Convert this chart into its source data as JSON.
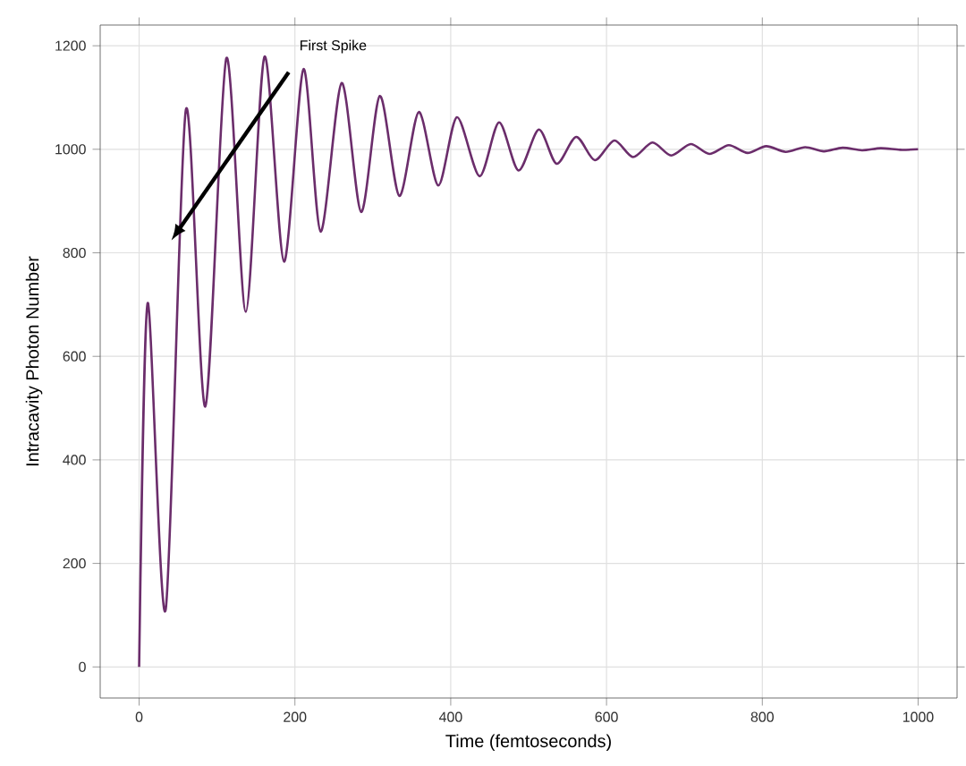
{
  "chart_data": {
    "type": "line",
    "xlabel": "Time (femtoseconds)",
    "ylabel": "Intracavity Photon Number",
    "xlim": [
      -50,
      1050
    ],
    "ylim": [
      -60,
      1240
    ],
    "xticks": [
      0,
      200,
      400,
      600,
      800,
      1000
    ],
    "yticks": [
      0,
      200,
      400,
      600,
      800,
      1000,
      1200
    ],
    "grid": true,
    "annotations": [
      "First Spike"
    ],
    "series": [
      {
        "color": "#6b2d6b",
        "line_style": "solid",
        "x": [
          0,
          11,
          34,
          60,
          85,
          112,
          137,
          161,
          186,
          211,
          233,
          260,
          285,
          309,
          334,
          359,
          384,
          408,
          437,
          462,
          487,
          513,
          536,
          561,
          585,
          610,
          634,
          659,
          683,
          708,
          732,
          757,
          781,
          805,
          830,
          855,
          879,
          903,
          928,
          952,
          977,
          1000
        ],
        "values": [
          0,
          703,
          110,
          1076,
          503,
          1176,
          686,
          1179,
          783,
          1155,
          841,
          1128,
          879,
          1103,
          910,
          1072,
          930,
          1062,
          948,
          1052,
          959,
          1038,
          972,
          1024,
          979,
          1017,
          985,
          1013,
          988,
          1010,
          991,
          1008,
          993,
          1006,
          995,
          1004,
          996,
          1003,
          998,
          1002,
          999,
          1000
        ]
      }
    ]
  }
}
